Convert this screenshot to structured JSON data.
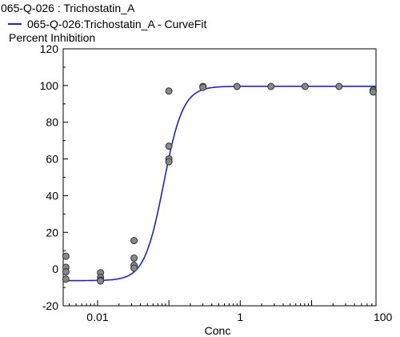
{
  "chart_data": {
    "type": "scatter",
    "title": "065-Q-026 : Trichostatin_A",
    "series": [
      {
        "name": "065-Q-026:Trichostatin_A - CurveFit",
        "kind": "fit",
        "color": "#2222cc",
        "params": {
          "bottom": -6.3,
          "top": 99.6,
          "ec50": 0.0845,
          "hill": 3.2
        }
      },
      {
        "name": "",
        "kind": "points",
        "color": "#888888",
        "points": [
          [
            0.0036,
            7
          ],
          [
            0.0036,
            1
          ],
          [
            0.0036,
            -1.5
          ],
          [
            0.0036,
            -5.5
          ],
          [
            0.011,
            -2
          ],
          [
            0.011,
            -4.5
          ],
          [
            0.011,
            -6
          ],
          [
            0.011,
            -6.5
          ],
          [
            0.0325,
            15.5
          ],
          [
            0.0325,
            6
          ],
          [
            0.0325,
            2
          ],
          [
            0.0325,
            0.5
          ],
          [
            0.1,
            97
          ],
          [
            0.1,
            67
          ],
          [
            0.1,
            60
          ],
          [
            0.1,
            58.5
          ],
          [
            0.3,
            99.5
          ],
          [
            0.3,
            99
          ],
          [
            0.9,
            99.5
          ],
          [
            2.7,
            99.5
          ],
          [
            8.1,
            99.5
          ],
          [
            24.3,
            99.5
          ],
          [
            73,
            97.5
          ],
          [
            73,
            96.5
          ]
        ]
      }
    ],
    "xlabel": "Conc",
    "ylabel": "Percent Inhibition",
    "xscale": "log",
    "xlim": [
      0.0033,
      80
    ],
    "ylim": [
      -20,
      120
    ],
    "xticks": [
      0.01,
      1,
      100
    ],
    "xtick_labels": [
      "0.01",
      "1",
      "100"
    ],
    "yticks": [
      -20,
      0,
      20,
      40,
      60,
      80,
      100,
      120
    ],
    "ytick_labels": [
      "-20",
      "0",
      "20",
      "40",
      "60",
      "80",
      "100",
      "120"
    ],
    "grid": false,
    "legend_position": "top-left"
  }
}
